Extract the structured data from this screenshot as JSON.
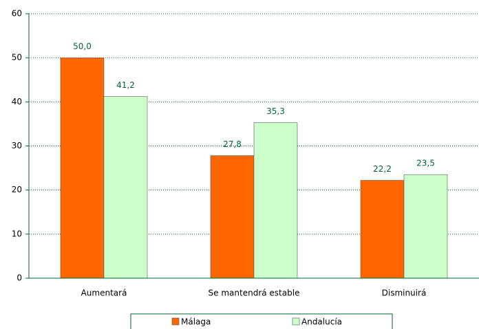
{
  "chart_data": {
    "type": "bar",
    "categories": [
      "Aumentará",
      "Se mantendrá estable",
      "Disminuirá"
    ],
    "series": [
      {
        "name": "Málaga",
        "color": "#ff6600",
        "values": [
          50.0,
          27.8,
          22.2
        ],
        "value_labels": [
          "50,0",
          "27,8",
          "22,2"
        ]
      },
      {
        "name": "Andalucía",
        "color": "#ccffcc",
        "values": [
          41.2,
          35.3,
          23.5
        ],
        "value_labels": [
          "41,2",
          "35,3",
          "23,5"
        ]
      }
    ],
    "ylim": [
      0,
      60
    ],
    "yticks": [
      0,
      10,
      20,
      30,
      40,
      50,
      60
    ],
    "grid": true,
    "legend": "bottom"
  }
}
